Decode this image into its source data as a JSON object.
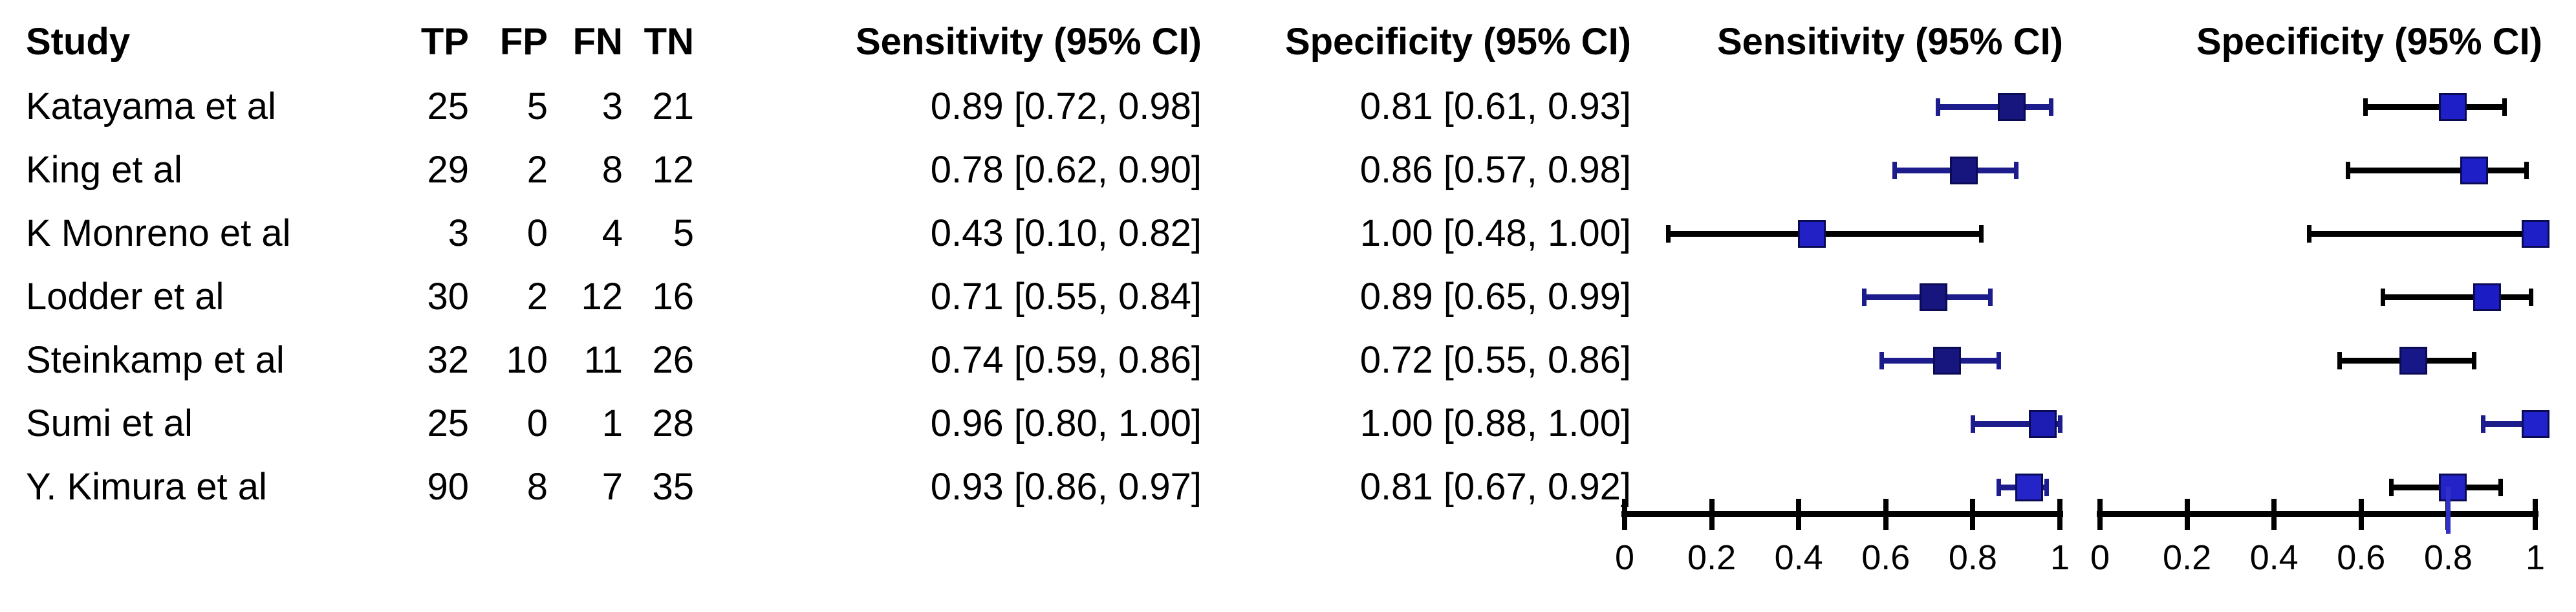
{
  "figure": {
    "background": "#ffffff",
    "text_color": "#000000"
  },
  "table": {
    "headers": {
      "study": "Study",
      "tp": "TP",
      "fp": "FP",
      "fn": "FN",
      "tn": "TN",
      "sensitivity": "Sensitivity (95% CI)",
      "specificity": "Specificity (95% CI)"
    }
  },
  "plots": {
    "sensitivity_title": "Sensitivity (95% CI)",
    "specificity_title": "Specificity (95% CI)",
    "axis_tick_labels": [
      "0",
      "0.2",
      "0.4",
      "0.6",
      "0.8",
      "1"
    ]
  },
  "colors": {
    "axis": "#000000",
    "marker_border": "#0a0a55",
    "sensitivity_line_colors": [
      "#1c1c8c",
      "#1c1c8c",
      "#000000",
      "#1c1c8c",
      "#1c1c8c",
      "#1c1c8c",
      "#1c1c8c"
    ],
    "specificity_line_colors": [
      "#000000",
      "#000000",
      "#000000",
      "#000000",
      "#000000",
      "#1c1c8c",
      "#000000"
    ],
    "sensitivity_marker_colors": [
      "#16167e",
      "#16167e",
      "#2121c6",
      "#16167e",
      "#16167e",
      "#1d1db4",
      "#2424c8"
    ],
    "specificity_marker_colors": [
      "#1f1fc8",
      "#1f1fc8",
      "#1f1fc8",
      "#1c1cc4",
      "#17178a",
      "#2222cc",
      "#2323c8"
    ]
  },
  "chart_data": {
    "type": "forest",
    "x_range": [
      0,
      1
    ],
    "x_ticks": [
      0,
      0.2,
      0.4,
      0.6,
      0.8,
      1
    ],
    "panels": [
      "Sensitivity (95% CI)",
      "Specificity (95% CI)"
    ],
    "studies": [
      {
        "study": "Katayama et al",
        "tp": 25,
        "fp": 5,
        "fn": 3,
        "tn": 21,
        "sensitivity": {
          "estimate": 0.89,
          "ci_low": 0.72,
          "ci_high": 0.98,
          "label": "0.89 [0.72, 0.98]"
        },
        "specificity": {
          "estimate": 0.81,
          "ci_low": 0.61,
          "ci_high": 0.93,
          "label": "0.81 [0.61, 0.93]"
        }
      },
      {
        "study": "King et al",
        "tp": 29,
        "fp": 2,
        "fn": 8,
        "tn": 12,
        "sensitivity": {
          "estimate": 0.78,
          "ci_low": 0.62,
          "ci_high": 0.9,
          "label": "0.78 [0.62, 0.90]"
        },
        "specificity": {
          "estimate": 0.86,
          "ci_low": 0.57,
          "ci_high": 0.98,
          "label": "0.86 [0.57, 0.98]"
        }
      },
      {
        "study": "K Monreno et al",
        "tp": 3,
        "fp": 0,
        "fn": 4,
        "tn": 5,
        "sensitivity": {
          "estimate": 0.43,
          "ci_low": 0.1,
          "ci_high": 0.82,
          "label": "0.43 [0.10, 0.82]"
        },
        "specificity": {
          "estimate": 1.0,
          "ci_low": 0.48,
          "ci_high": 1.0,
          "label": "1.00 [0.48, 1.00]"
        }
      },
      {
        "study": "Lodder et al",
        "tp": 30,
        "fp": 2,
        "fn": 12,
        "tn": 16,
        "sensitivity": {
          "estimate": 0.71,
          "ci_low": 0.55,
          "ci_high": 0.84,
          "label": "0.71 [0.55, 0.84]"
        },
        "specificity": {
          "estimate": 0.89,
          "ci_low": 0.65,
          "ci_high": 0.99,
          "label": "0.89 [0.65, 0.99]"
        }
      },
      {
        "study": "Steinkamp et al",
        "tp": 32,
        "fp": 10,
        "fn": 11,
        "tn": 26,
        "sensitivity": {
          "estimate": 0.74,
          "ci_low": 0.59,
          "ci_high": 0.86,
          "label": "0.74 [0.59, 0.86]"
        },
        "specificity": {
          "estimate": 0.72,
          "ci_low": 0.55,
          "ci_high": 0.86,
          "label": "0.72 [0.55, 0.86]"
        }
      },
      {
        "study": "Sumi et al",
        "tp": 25,
        "fp": 0,
        "fn": 1,
        "tn": 28,
        "sensitivity": {
          "estimate": 0.96,
          "ci_low": 0.8,
          "ci_high": 1.0,
          "label": "0.96 [0.80, 1.00]"
        },
        "specificity": {
          "estimate": 1.0,
          "ci_low": 0.88,
          "ci_high": 1.0,
          "label": "1.00 [0.88, 1.00]"
        }
      },
      {
        "study": "Y. Kimura et al",
        "tp": 90,
        "fp": 8,
        "fn": 7,
        "tn": 35,
        "sensitivity": {
          "estimate": 0.93,
          "ci_low": 0.86,
          "ci_high": 0.97,
          "label": "0.93 [0.86, 0.97]"
        },
        "specificity": {
          "estimate": 0.81,
          "ci_low": 0.67,
          "ci_high": 0.92,
          "label": "0.81 [0.67, 0.92]"
        }
      }
    ],
    "stem_below_marker": {
      "panel": "specificity",
      "study": "Y. Kimura et al",
      "x": 0.8
    }
  }
}
